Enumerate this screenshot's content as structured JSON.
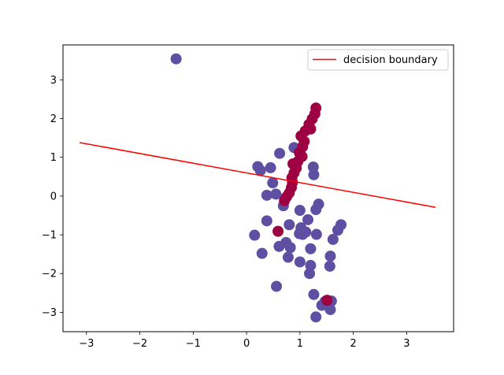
{
  "chart_data": {
    "type": "scatter",
    "title": "",
    "xlabel": "",
    "ylabel": "",
    "xlim": [
      -3.44,
      3.88
    ],
    "ylim": [
      -3.5,
      3.9
    ],
    "xticks": [
      -3,
      -2,
      -1,
      0,
      1,
      2,
      3
    ],
    "yticks": [
      -3,
      -2,
      -1,
      0,
      1,
      2,
      3
    ],
    "grid": false,
    "legend": {
      "placement": "top-right",
      "entries": [
        "decision boundary"
      ]
    },
    "colors": {
      "class_0": "#5e4fa2",
      "class_1": "#9e0142",
      "boundary": "#ff0000"
    },
    "decision_boundary": {
      "name": "decision boundary",
      "x": [
        -3.13,
        3.54
      ],
      "y": [
        1.38,
        -0.29
      ]
    },
    "series": [
      {
        "class": 0,
        "color": "#5e4fa2",
        "points": [
          [
            -1.32,
            3.54
          ],
          [
            0.62,
            1.1
          ],
          [
            0.89,
            1.25
          ],
          [
            0.21,
            0.76
          ],
          [
            0.26,
            0.66
          ],
          [
            0.45,
            0.73
          ],
          [
            1.25,
            0.75
          ],
          [
            1.26,
            0.55
          ],
          [
            0.49,
            0.34
          ],
          [
            0.38,
            0.02
          ],
          [
            0.55,
            0.05
          ],
          [
            0.69,
            -0.25
          ],
          [
            1.35,
            -0.21
          ],
          [
            1.3,
            -0.35
          ],
          [
            1.0,
            -0.37
          ],
          [
            0.38,
            -0.64
          ],
          [
            0.8,
            -0.74
          ],
          [
            1.15,
            -0.61
          ],
          [
            1.77,
            -0.74
          ],
          [
            1.71,
            -0.88
          ],
          [
            1.02,
            -0.82
          ],
          [
            0.99,
            -0.97
          ],
          [
            1.11,
            -0.93
          ],
          [
            1.05,
            -0.99
          ],
          [
            1.31,
            -0.99
          ],
          [
            1.62,
            -1.12
          ],
          [
            0.15,
            -1.01
          ],
          [
            0.61,
            -1.3
          ],
          [
            0.74,
            -1.2
          ],
          [
            0.82,
            -1.33
          ],
          [
            0.78,
            -1.58
          ],
          [
            1.2,
            -1.36
          ],
          [
            0.29,
            -1.48
          ],
          [
            1.0,
            -1.7
          ],
          [
            1.2,
            -1.79
          ],
          [
            1.57,
            -1.55
          ],
          [
            1.56,
            -1.81
          ],
          [
            1.18,
            -2.0
          ],
          [
            0.56,
            -2.33
          ],
          [
            1.26,
            -2.54
          ],
          [
            1.47,
            -2.72
          ],
          [
            1.59,
            -2.71
          ],
          [
            1.41,
            -2.82
          ],
          [
            1.57,
            -2.93
          ],
          [
            1.3,
            -3.12
          ]
        ]
      },
      {
        "class": 1,
        "color": "#9e0142",
        "points": [
          [
            1.3,
            2.27
          ],
          [
            1.28,
            2.12
          ],
          [
            1.23,
            1.99
          ],
          [
            1.17,
            1.85
          ],
          [
            1.2,
            1.73
          ],
          [
            1.1,
            1.68
          ],
          [
            1.02,
            1.55
          ],
          [
            1.08,
            1.41
          ],
          [
            1.05,
            1.27
          ],
          [
            0.99,
            1.12
          ],
          [
            1.04,
            1.02
          ],
          [
            0.96,
            0.89
          ],
          [
            0.87,
            0.83
          ],
          [
            0.93,
            0.72
          ],
          [
            0.89,
            0.6
          ],
          [
            0.85,
            0.47
          ],
          [
            0.86,
            0.35
          ],
          [
            0.84,
            0.22
          ],
          [
            0.8,
            0.08
          ],
          [
            0.75,
            -0.02
          ],
          [
            0.71,
            -0.12
          ],
          [
            0.59,
            -0.91
          ],
          [
            1.51,
            -2.69
          ]
        ]
      }
    ]
  }
}
